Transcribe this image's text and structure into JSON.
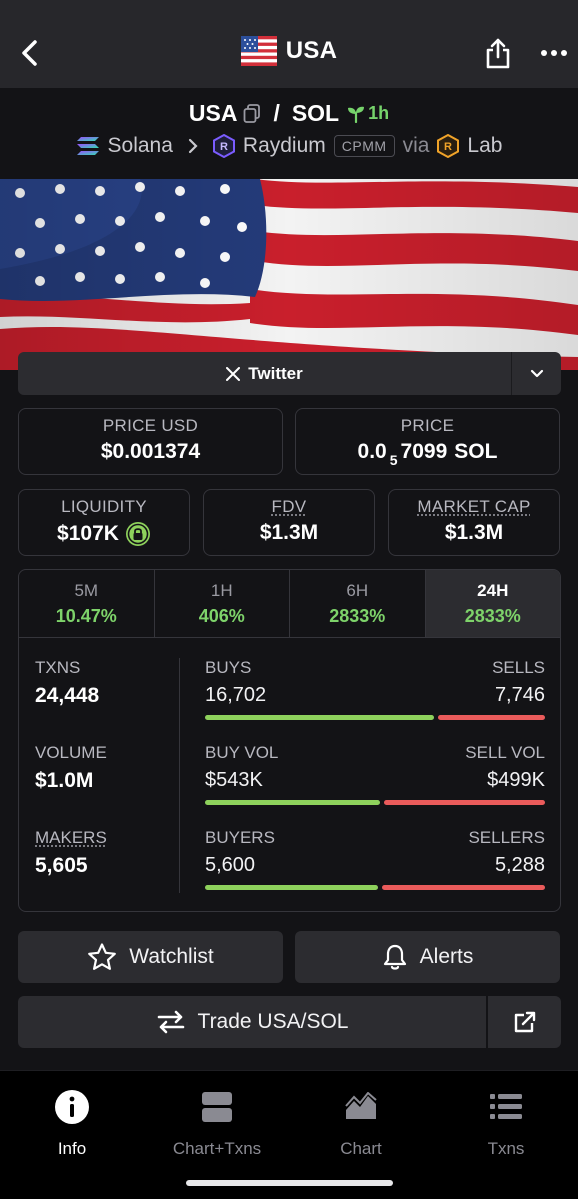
{
  "nav": {
    "title": "USA",
    "back_icon": "chevron-left-icon",
    "share_icon": "share-icon",
    "more_icon": "more-horizontal-icon"
  },
  "pair": {
    "base": "USA",
    "separator": "/",
    "quote": "SOL",
    "age": "1h",
    "chain": "Solana",
    "dex": "Raydium",
    "pool_type": "CPMM",
    "via_label": "via",
    "launchpad": "Lab"
  },
  "twitter": {
    "label": "Twitter"
  },
  "price": {
    "usd_label": "PRICE USD",
    "usd_value": "$0.001374",
    "native_label": "PRICE",
    "native_prefix": "0.0",
    "native_zeros": "5",
    "native_digits": "7099",
    "native_unit": "SOL"
  },
  "metrics": {
    "liquidity_label": "LIQUIDITY",
    "liquidity_value": "$107K",
    "fdv_label": "FDV",
    "fdv_value": "$1.3M",
    "mcap_label": "MARKET CAP",
    "mcap_value": "$1.3M"
  },
  "timeframes": [
    {
      "name": "5M",
      "change": "10.47%"
    },
    {
      "name": "1H",
      "change": "406%"
    },
    {
      "name": "6H",
      "change": "2833%"
    },
    {
      "name": "24H",
      "change": "2833%"
    }
  ],
  "stats": {
    "txns_label": "TXNS",
    "txns_value": "24,448",
    "volume_label": "VOLUME",
    "volume_value": "$1.0M",
    "makers_label": "MAKERS",
    "makers_value": "5,605",
    "buys_label": "BUYS",
    "buys_value": "16,702",
    "sells_label": "SELLS",
    "sells_value": "7,746",
    "buys_ratio": 0.683,
    "buyvol_label": "BUY VOL",
    "buyvol_value": "$543K",
    "sellvol_label": "SELL VOL",
    "sellvol_value": "$499K",
    "buyvol_ratio": 0.521,
    "buyers_label": "BUYERS",
    "buyers_value": "5,600",
    "sellers_label": "SELLERS",
    "sellers_value": "5,288",
    "buyers_ratio": 0.514
  },
  "actions": {
    "watchlist": "Watchlist",
    "alerts": "Alerts",
    "trade": "Trade USA/SOL"
  },
  "tabbar": [
    {
      "label": "Info",
      "icon": "info-icon"
    },
    {
      "label": "Chart+Txns",
      "icon": "split-panel-icon"
    },
    {
      "label": "Chart",
      "icon": "area-chart-icon"
    },
    {
      "label": "Txns",
      "icon": "list-icon"
    }
  ],
  "colors": {
    "accent_green": "#7ed36a",
    "buy_bar": "#8ed15c",
    "sell_bar": "#ea5b5b",
    "background": "#131316",
    "panel": "#2c2c30"
  }
}
